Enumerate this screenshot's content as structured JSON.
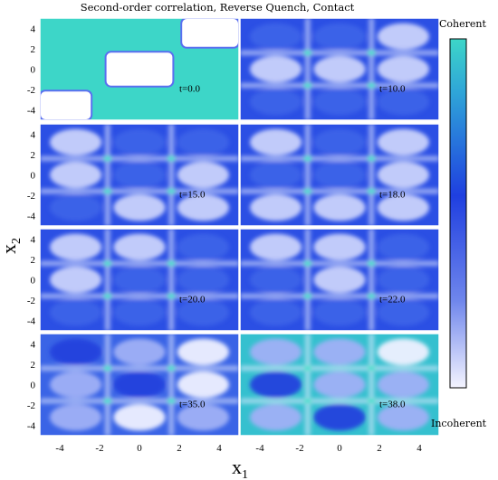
{
  "chart_data": {
    "type": "heatmap",
    "title": "Second-order correlation, Reverse Quench, Contact",
    "xlabel": "x",
    "xlabel_sub": "1",
    "ylabel": "x",
    "ylabel_sub": "2",
    "xlim": [
      -5,
      5
    ],
    "ylim": [
      -5,
      5
    ],
    "xticks": [
      "-4",
      "-2",
      "0",
      "2",
      "4"
    ],
    "yticks": [
      "4",
      "2",
      "0",
      "-2",
      "-4"
    ],
    "colorbar": {
      "top_label": "Coherent",
      "bottom_label": "Incoherent",
      "colors": [
        "#3dd6c8",
        "#1f3fe0",
        "#f4f4ff"
      ]
    },
    "panels": [
      {
        "label": "t=0.0",
        "time": 0.0
      },
      {
        "label": "t=10.0",
        "time": 10.0
      },
      {
        "label": "t=15.0",
        "time": 15.0
      },
      {
        "label": "t=18.0",
        "time": 18.0
      },
      {
        "label": "t=20.0",
        "time": 20.0
      },
      {
        "label": "t=22.0",
        "time": 22.0
      },
      {
        "label": "t=35.0",
        "time": 35.0
      },
      {
        "label": "t=38.0",
        "time": 38.0
      }
    ]
  }
}
